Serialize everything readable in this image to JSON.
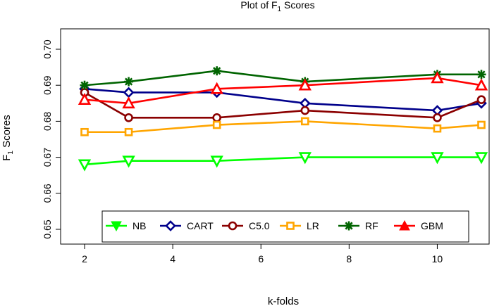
{
  "chart_data": {
    "type": "line",
    "title": "Plot of F",
    "title_subscript": "1",
    "title_suffix": " Scores",
    "xlabel": "k-folds",
    "ylabel": "F",
    "ylabel_subscript": "1",
    "ylabel_suffix": " Scores",
    "xlim": [
      2,
      11
    ],
    "ylim": [
      0.65,
      0.7
    ],
    "x_ticks": [
      2,
      4,
      6,
      8,
      10
    ],
    "x_tick_labels": [
      "2",
      "4",
      "6",
      "8",
      "10"
    ],
    "y_ticks": [
      0.65,
      0.66,
      0.67,
      0.68,
      0.69,
      0.7
    ],
    "y_tick_labels": [
      "0.65",
      "0.66",
      "0.67",
      "0.68",
      "0.69",
      "0.70"
    ],
    "grid": false,
    "legend_position": "bottom",
    "x": [
      2,
      3,
      5,
      7,
      10,
      11
    ],
    "series": [
      {
        "name": "NB",
        "color": "#00ff00",
        "marker": "triangle-down",
        "values": [
          0.668,
          0.669,
          0.669,
          0.67,
          0.67,
          0.67
        ]
      },
      {
        "name": "CART",
        "color": "#00008b",
        "marker": "diamond",
        "values": [
          0.689,
          0.688,
          0.688,
          0.685,
          0.683,
          0.685
        ]
      },
      {
        "name": "C5.0",
        "color": "#8b0000",
        "marker": "circle",
        "values": [
          0.688,
          0.681,
          0.681,
          0.683,
          0.681,
          0.686
        ]
      },
      {
        "name": "LR",
        "color": "#ffa500",
        "marker": "square",
        "values": [
          0.677,
          0.677,
          0.679,
          0.68,
          0.678,
          0.679
        ]
      },
      {
        "name": "RF",
        "color": "#006400",
        "marker": "asterisk",
        "values": [
          0.69,
          0.691,
          0.694,
          0.691,
          0.693,
          0.693
        ]
      },
      {
        "name": "GBM",
        "color": "#ff0000",
        "marker": "triangle-up",
        "values": [
          0.686,
          0.685,
          0.689,
          0.69,
          0.692,
          0.69
        ]
      }
    ]
  }
}
